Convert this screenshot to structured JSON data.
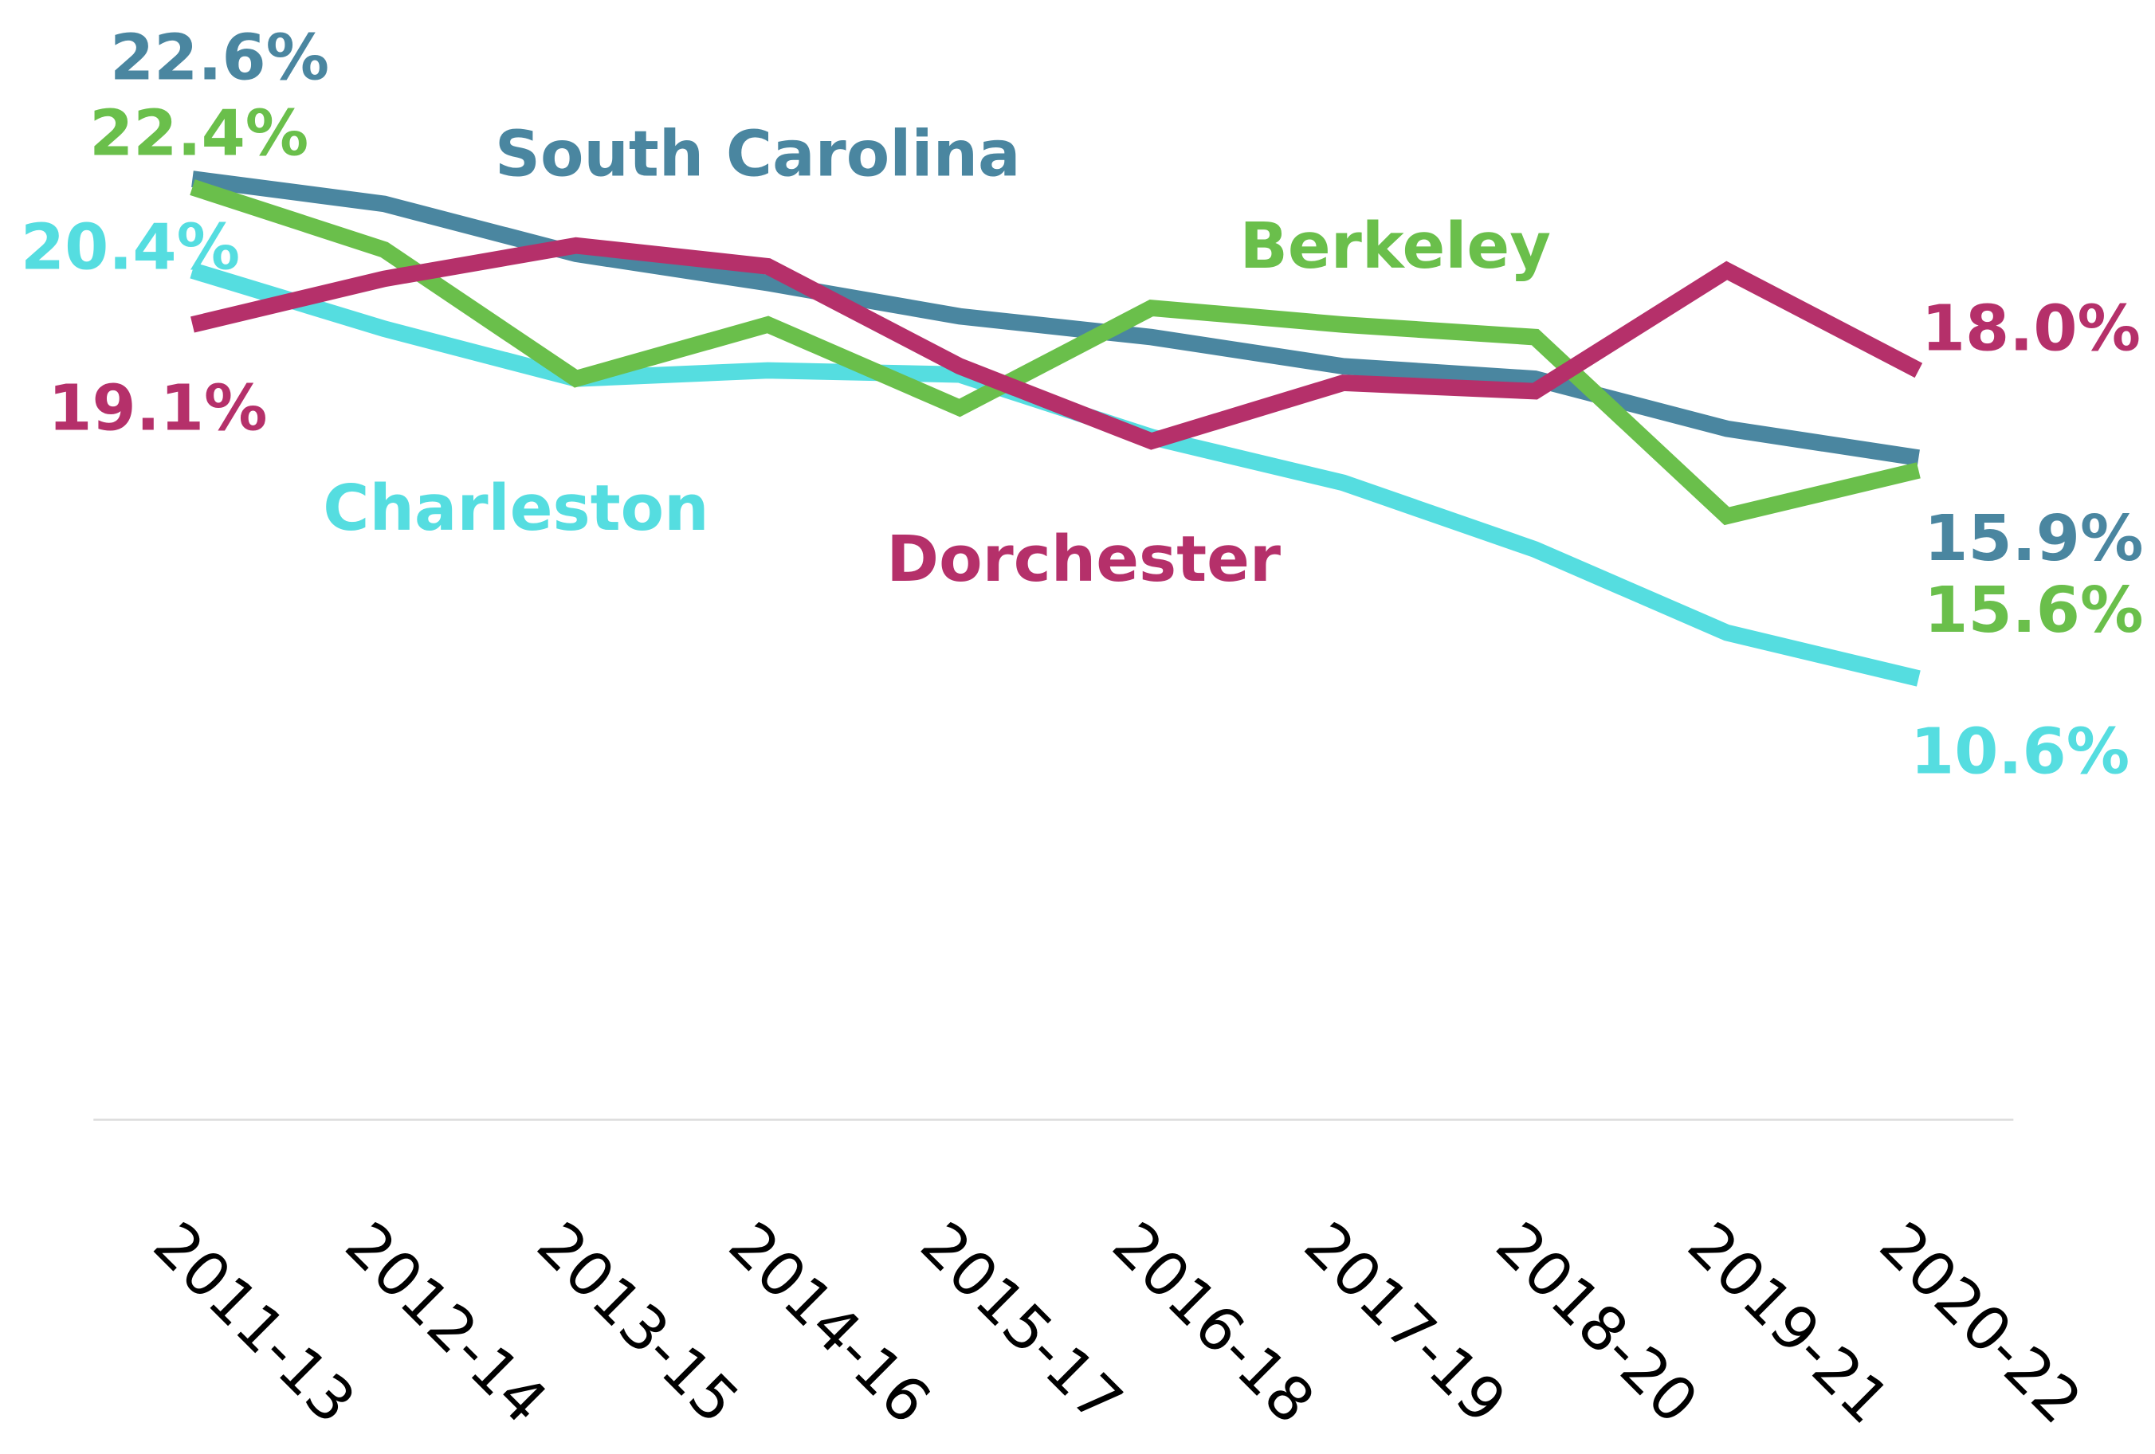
{
  "chart_data": {
    "type": "line",
    "categories": [
      "2011-13",
      "2012-14",
      "2013-15",
      "2014-16",
      "2015-17",
      "2016-18",
      "2017-19",
      "2018-20",
      "2019-21",
      "2020-22"
    ],
    "ylim": [
      0,
      25
    ],
    "series": [
      {
        "name": "South Carolina",
        "color": "#4a86a0",
        "values": [
          22.6,
          22.0,
          20.8,
          20.1,
          19.3,
          18.8,
          18.1,
          17.8,
          16.6,
          15.9
        ],
        "value_labels": [
          "22.6%",
          null,
          null,
          null,
          null,
          null,
          null,
          null,
          null,
          "15.9%"
        ]
      },
      {
        "name": "Charleston",
        "color": "#55dde0",
        "values": [
          20.4,
          19.0,
          17.8,
          18.0,
          17.9,
          16.4,
          15.3,
          13.7,
          11.7,
          10.6
        ],
        "value_labels": [
          "20.4%",
          null,
          null,
          null,
          null,
          null,
          null,
          null,
          null,
          "10.6%"
        ]
      },
      {
        "name": "Berkeley",
        "color": "#6abf4b",
        "values": [
          22.4,
          20.9,
          17.8,
          19.1,
          17.1,
          19.5,
          19.1,
          18.8,
          14.5,
          15.6
        ],
        "value_labels": [
          "22.4%",
          null,
          null,
          null,
          null,
          null,
          null,
          null,
          null,
          "15.6%"
        ]
      },
      {
        "name": "Dorchester",
        "color": "#b5306a",
        "values": [
          19.1,
          20.2,
          21.0,
          20.5,
          18.1,
          16.3,
          17.7,
          17.5,
          20.4,
          18.0
        ],
        "value_labels": [
          "19.1%",
          null,
          null,
          null,
          null,
          null,
          null,
          null,
          null,
          "18.0%"
        ]
      }
    ]
  }
}
